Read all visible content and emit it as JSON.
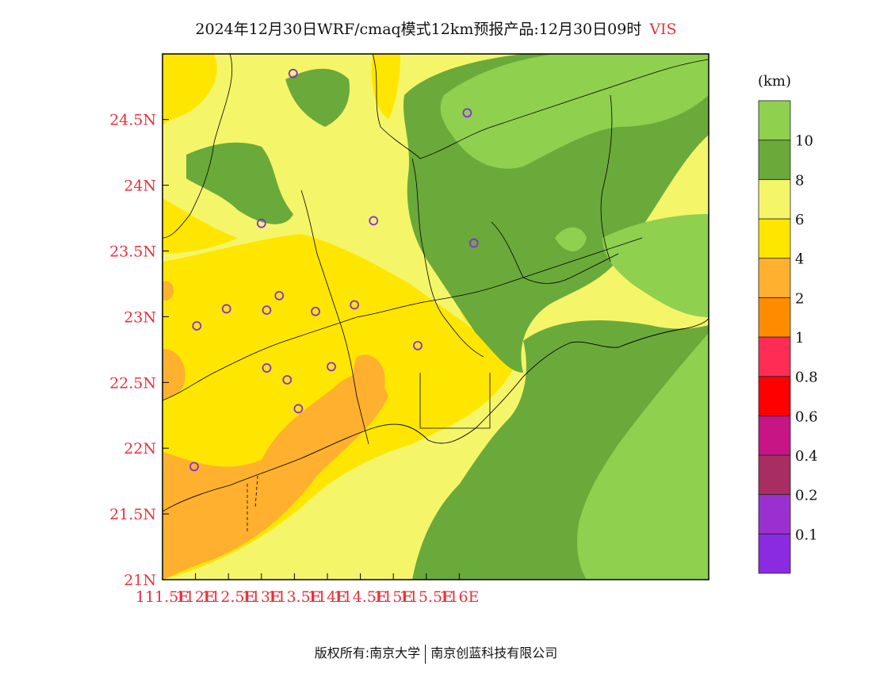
{
  "title": {
    "text": "2024年12月30日WRF/cmaq模式12km预报产品:12月30日09时",
    "variable": "VIS"
  },
  "map": {
    "lon_ticks": [
      "111.5E",
      "112E",
      "112.5E",
      "113E",
      "113.5E",
      "114E",
      "114.5E",
      "115E",
      "115.5E",
      "116E"
    ],
    "lat_ticks": [
      "24.5N",
      "24N",
      "23.5N",
      "23N",
      "22.5N",
      "22N",
      "21.5N",
      "21N"
    ],
    "label_color": "#e8323c",
    "station_marker_color": "#8a2be2",
    "stations": [
      {
        "lon": 113.48,
        "lat": 24.85
      },
      {
        "lon": 116.12,
        "lat": 24.55
      },
      {
        "lon": 113.0,
        "lat": 23.71
      },
      {
        "lon": 114.7,
        "lat": 23.73
      },
      {
        "lon": 116.22,
        "lat": 23.56
      },
      {
        "lon": 112.47,
        "lat": 23.06
      },
      {
        "lon": 112.02,
        "lat": 22.93
      },
      {
        "lon": 113.08,
        "lat": 23.05
      },
      {
        "lon": 113.27,
        "lat": 23.16
      },
      {
        "lon": 113.82,
        "lat": 23.04
      },
      {
        "lon": 114.41,
        "lat": 23.09
      },
      {
        "lon": 115.37,
        "lat": 22.78
      },
      {
        "lon": 113.08,
        "lat": 22.61
      },
      {
        "lon": 113.39,
        "lat": 22.52
      },
      {
        "lon": 114.06,
        "lat": 22.62
      },
      {
        "lon": 113.56,
        "lat": 22.3
      },
      {
        "lon": 111.98,
        "lat": 21.86
      }
    ]
  },
  "legend": {
    "unit": "(km)",
    "colors": [
      "#8a2be2",
      "#9b30d0",
      "#a82e62",
      "#c71585",
      "#ff0000",
      "#ff2d55",
      "#ff8c00",
      "#ffb02e",
      "#ffe600",
      "#f5f56a",
      "#6aaa3a",
      "#8fd04f"
    ],
    "labels": [
      "0.1",
      "0.2",
      "0.4",
      "0.6",
      "0.8",
      "1",
      "2",
      "4",
      "6",
      "8",
      "10"
    ]
  },
  "footer": {
    "left": "版权所有:南京大学",
    "right": "南京创蓝科技有限公司"
  }
}
